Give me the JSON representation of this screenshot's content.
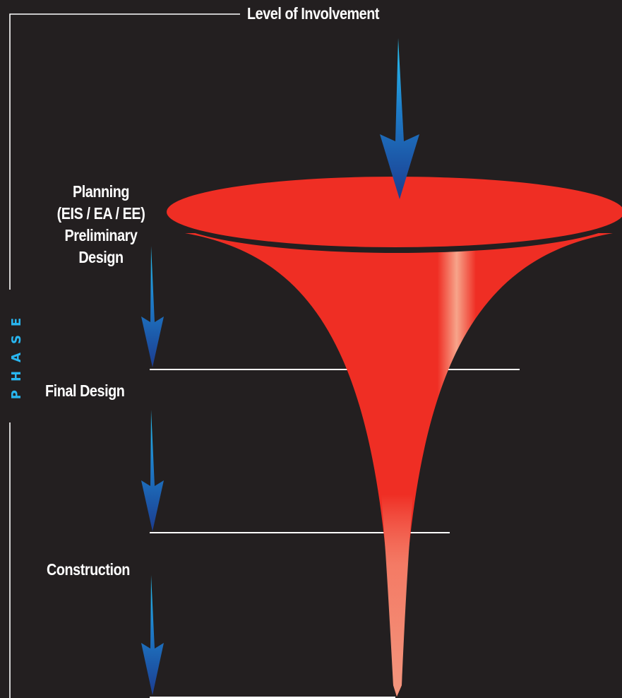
{
  "title": "Level of Involvement",
  "axis_label": "PHASE",
  "phases": {
    "planning": [
      "Planning",
      "(EIS / EA / EE)",
      "Preliminary",
      "Design"
    ],
    "final_design": "Final Design",
    "construction": "Construction"
  },
  "colors": {
    "background": "#231f20",
    "funnel": "#ef2e24",
    "funnel_highlight": "#f7a48a",
    "arrow_top": "#29c6f4",
    "arrow_bottom": "#1b3c8f",
    "phase_label": "#29b6f0",
    "lines": "#ffffff"
  }
}
